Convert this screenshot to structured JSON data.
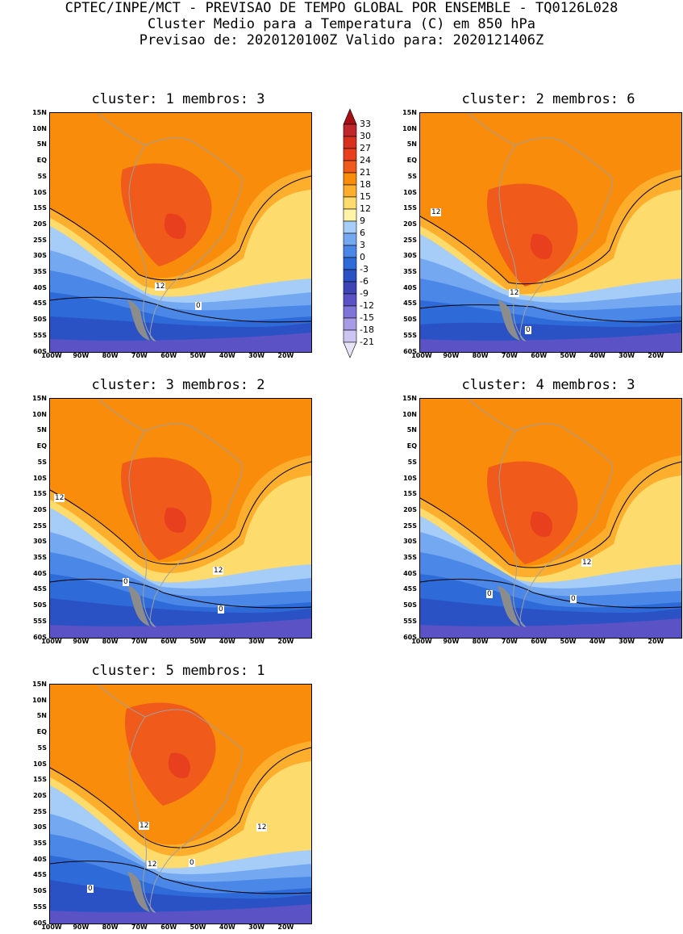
{
  "header": {
    "line1": "CPTEC/INPE/MCT - PREVISAO DE TEMPO GLOBAL POR ENSEMBLE - TQ0126L028",
    "line2": "Cluster Medio para a Temperatura (C) em 850 hPa",
    "line3": "Previsao de: 2020120100Z   Valido para: 2020121406Z"
  },
  "axes": {
    "lat_labels": [
      "15N",
      "10N",
      "5N",
      "EQ",
      "5S",
      "10S",
      "15S",
      "20S",
      "25S",
      "30S",
      "35S",
      "40S",
      "45S",
      "50S",
      "55S",
      "60S"
    ],
    "lon_labels": [
      "100W",
      "90W",
      "80W",
      "70W",
      "60W",
      "50W",
      "40W",
      "30W",
      "20W"
    ]
  },
  "colorbar": {
    "labels": [
      "33",
      "30",
      "27",
      "24",
      "21",
      "18",
      "15",
      "12",
      "9",
      "6",
      "3",
      "0",
      "-3",
      "-6",
      "-9",
      "-12",
      "-15",
      "-18",
      "-21"
    ],
    "colors": [
      "#a50f15",
      "#c0272d",
      "#d7301f",
      "#e8401e",
      "#f05a1a",
      "#f98c0a",
      "#fdae2c",
      "#fddb6d",
      "#fff3a8",
      "#a6cdf7",
      "#74a9f2",
      "#4a87e6",
      "#2e6bd8",
      "#2a52c4",
      "#3e44b6",
      "#5b52c6",
      "#7f74d8",
      "#a79be6",
      "#cdc4f2",
      "#e8e4f8"
    ]
  },
  "contour_line_labels": [
    "12",
    "0"
  ],
  "panels": [
    {
      "title": "cluster: 1   membros: 3",
      "labels": [
        {
          "text": "12"
        },
        {
          "text": "0"
        }
      ]
    },
    {
      "title": "cluster: 2   membros: 6",
      "labels": [
        {
          "text": "12"
        },
        {
          "text": "12"
        },
        {
          "text": "0"
        }
      ]
    },
    {
      "title": "cluster: 3   membros: 2",
      "labels": [
        {
          "text": "12"
        },
        {
          "text": "12"
        },
        {
          "text": "0"
        },
        {
          "text": "0"
        }
      ]
    },
    {
      "title": "cluster: 4   membros: 3",
      "labels": [
        {
          "text": "12"
        },
        {
          "text": "0"
        },
        {
          "text": "0"
        }
      ]
    },
    {
      "title": "cluster: 5   membros: 1",
      "labels": [
        {
          "text": "12"
        },
        {
          "text": "12"
        },
        {
          "text": "12"
        },
        {
          "text": "0"
        },
        {
          "text": "0"
        }
      ]
    }
  ]
}
